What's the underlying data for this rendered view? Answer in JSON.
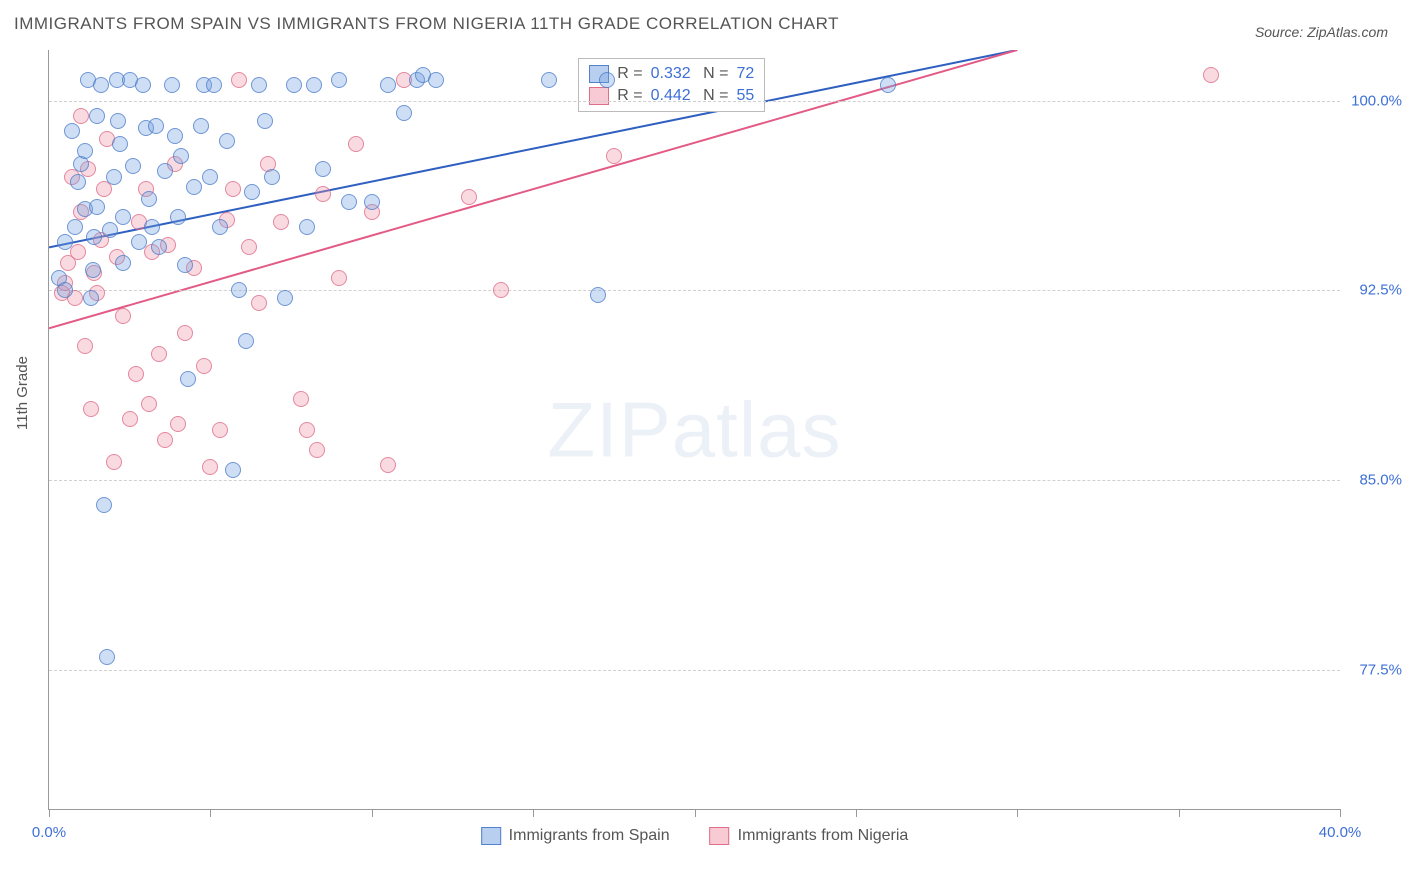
{
  "title": "IMMIGRANTS FROM SPAIN VS IMMIGRANTS FROM NIGERIA 11TH GRADE CORRELATION CHART",
  "source": "Source: ZipAtlas.com",
  "ylabel": "11th Grade",
  "watermark_a": "ZIP",
  "watermark_b": "atlas",
  "chart": {
    "type": "scatter",
    "xlim": [
      0,
      40
    ],
    "ylim": [
      72,
      102
    ],
    "xticks": [
      0,
      5,
      10,
      15,
      20,
      25,
      30,
      35,
      40
    ],
    "xtick_labels": {
      "0": "0.0%",
      "40": "40.0%"
    },
    "yticks": [
      77.5,
      85.0,
      92.5,
      100.0
    ],
    "ytick_labels": [
      "77.5%",
      "85.0%",
      "92.5%",
      "100.0%"
    ],
    "background": "#ffffff",
    "grid_color": "#d0d0d0",
    "axis_color": "#999999",
    "tick_label_color": "#3d6fd6",
    "marker_radius": 8,
    "series_a": {
      "label": "Immigrants from Spain",
      "color_fill": "rgba(116,160,224,0.35)",
      "color_stroke": "rgba(70,120,200,0.7)",
      "trend_color": "#2f5fc0",
      "trend_width": 2,
      "trend": {
        "x1": 0,
        "y1": 94.2,
        "x2": 30,
        "y2": 102
      },
      "R": "0.332",
      "N": "72",
      "points": [
        [
          0.3,
          93.0
        ],
        [
          0.5,
          92.5
        ],
        [
          0.5,
          94.4
        ],
        [
          0.7,
          98.8
        ],
        [
          0.8,
          95.0
        ],
        [
          0.9,
          96.8
        ],
        [
          1.0,
          97.5
        ],
        [
          1.1,
          95.7
        ],
        [
          1.1,
          98.0
        ],
        [
          1.2,
          100.8
        ],
        [
          1.3,
          92.2
        ],
        [
          1.35,
          93.3
        ],
        [
          1.4,
          94.6
        ],
        [
          1.5,
          95.8
        ],
        [
          1.5,
          99.4
        ],
        [
          1.6,
          100.6
        ],
        [
          1.7,
          84.0
        ],
        [
          1.8,
          78.0
        ],
        [
          1.9,
          94.9
        ],
        [
          2.0,
          97.0
        ],
        [
          2.1,
          100.8
        ],
        [
          2.15,
          99.2
        ],
        [
          2.2,
          98.3
        ],
        [
          2.3,
          93.6
        ],
        [
          2.3,
          95.4
        ],
        [
          2.5,
          100.8
        ],
        [
          2.6,
          97.4
        ],
        [
          2.8,
          94.4
        ],
        [
          2.9,
          100.6
        ],
        [
          3.0,
          98.9
        ],
        [
          3.1,
          96.1
        ],
        [
          3.2,
          95.0
        ],
        [
          3.3,
          99.0
        ],
        [
          3.4,
          94.2
        ],
        [
          3.6,
          97.2
        ],
        [
          3.8,
          100.6
        ],
        [
          3.9,
          98.6
        ],
        [
          4.0,
          95.4
        ],
        [
          4.1,
          97.8
        ],
        [
          4.2,
          93.5
        ],
        [
          4.3,
          89.0
        ],
        [
          4.5,
          96.6
        ],
        [
          4.7,
          99.0
        ],
        [
          4.8,
          100.6
        ],
        [
          5.0,
          97.0
        ],
        [
          5.1,
          100.6
        ],
        [
          5.3,
          95.0
        ],
        [
          5.5,
          98.4
        ],
        [
          5.7,
          85.4
        ],
        [
          5.9,
          92.5
        ],
        [
          6.1,
          90.5
        ],
        [
          6.3,
          96.4
        ],
        [
          6.5,
          100.6
        ],
        [
          6.7,
          99.2
        ],
        [
          6.9,
          97.0
        ],
        [
          7.3,
          92.2
        ],
        [
          7.6,
          100.6
        ],
        [
          8.0,
          95.0
        ],
        [
          8.2,
          100.6
        ],
        [
          8.5,
          97.3
        ],
        [
          9.0,
          100.8
        ],
        [
          9.3,
          96.0
        ],
        [
          10.0,
          96.0
        ],
        [
          10.5,
          100.6
        ],
        [
          11.0,
          99.5
        ],
        [
          11.4,
          100.8
        ],
        [
          11.6,
          101.0
        ],
        [
          12.0,
          100.8
        ],
        [
          15.5,
          100.8
        ],
        [
          17.0,
          92.3
        ],
        [
          17.3,
          100.8
        ],
        [
          26.0,
          100.6
        ]
      ]
    },
    "series_b": {
      "label": "Immigrants from Nigeria",
      "color_fill": "rgba(240,150,170,0.35)",
      "color_stroke": "rgba(220,100,130,0.7)",
      "trend_color": "#e35a85",
      "trend_width": 2,
      "trend": {
        "x1": 0,
        "y1": 91.0,
        "x2": 30,
        "y2": 102
      },
      "R": "0.442",
      "N": "55",
      "points": [
        [
          0.4,
          92.4
        ],
        [
          0.5,
          92.8
        ],
        [
          0.6,
          93.6
        ],
        [
          0.7,
          97.0
        ],
        [
          0.8,
          92.2
        ],
        [
          0.9,
          94.0
        ],
        [
          1.0,
          95.6
        ],
        [
          1.0,
          99.4
        ],
        [
          1.1,
          90.3
        ],
        [
          1.2,
          97.3
        ],
        [
          1.3,
          87.8
        ],
        [
          1.4,
          93.2
        ],
        [
          1.5,
          92.4
        ],
        [
          1.6,
          94.5
        ],
        [
          1.7,
          96.5
        ],
        [
          1.8,
          98.5
        ],
        [
          2.0,
          85.7
        ],
        [
          2.1,
          93.8
        ],
        [
          2.3,
          91.5
        ],
        [
          2.5,
          87.4
        ],
        [
          2.7,
          89.2
        ],
        [
          2.8,
          95.2
        ],
        [
          3.0,
          96.5
        ],
        [
          3.1,
          88.0
        ],
        [
          3.2,
          94.0
        ],
        [
          3.4,
          90.0
        ],
        [
          3.6,
          86.6
        ],
        [
          3.7,
          94.3
        ],
        [
          3.9,
          97.5
        ],
        [
          4.0,
          87.2
        ],
        [
          4.2,
          90.8
        ],
        [
          4.5,
          93.4
        ],
        [
          4.8,
          89.5
        ],
        [
          5.0,
          85.5
        ],
        [
          5.3,
          87.0
        ],
        [
          5.5,
          95.3
        ],
        [
          5.7,
          96.5
        ],
        [
          5.9,
          100.8
        ],
        [
          6.2,
          94.2
        ],
        [
          6.5,
          92.0
        ],
        [
          6.8,
          97.5
        ],
        [
          7.2,
          95.2
        ],
        [
          7.8,
          88.2
        ],
        [
          8.0,
          87.0
        ],
        [
          8.3,
          86.2
        ],
        [
          8.5,
          96.3
        ],
        [
          9.0,
          93.0
        ],
        [
          9.5,
          98.3
        ],
        [
          10.0,
          95.6
        ],
        [
          10.5,
          85.6
        ],
        [
          11.0,
          100.8
        ],
        [
          13.0,
          96.2
        ],
        [
          14.0,
          92.5
        ],
        [
          17.5,
          97.8
        ],
        [
          36.0,
          101.0
        ]
      ]
    },
    "stats_box": {
      "left_pct": 41,
      "top_pct": 1
    }
  }
}
